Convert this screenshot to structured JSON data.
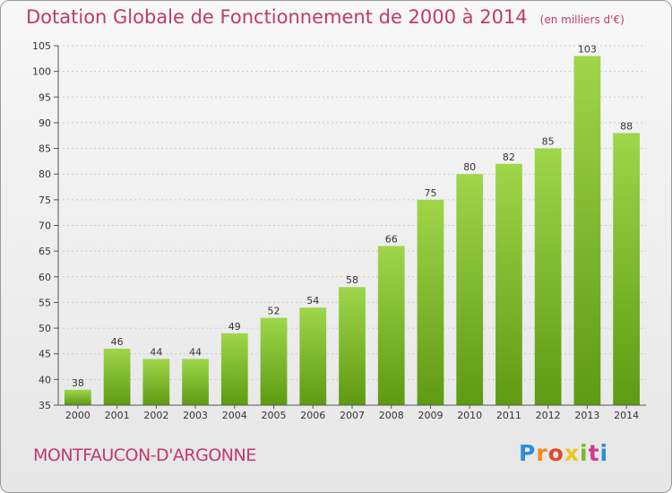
{
  "title": "Dotation Globale de Fonctionnement de 2000 à 2014",
  "subtitle": "(en milliers d'€)",
  "commune": "MONTFAUCON-D'ARGONNE",
  "logo": {
    "letters": [
      "P",
      "r",
      "o",
      "x",
      "i",
      "t",
      "i"
    ],
    "colors": [
      "#2b8fd6",
      "#f08a1c",
      "#e04a2a",
      "#f0c419",
      "#7ab82e",
      "#d03a8a",
      "#2b8fd6"
    ]
  },
  "colors": {
    "title": "#c03a6e",
    "bar_light": "#9fd64a",
    "bar_dark": "#5e9a12",
    "grid": "#c9c9c9"
  },
  "chart_data": {
    "type": "bar",
    "categories": [
      "2000",
      "2001",
      "2002",
      "2003",
      "2004",
      "2005",
      "2006",
      "2007",
      "2008",
      "2009",
      "2010",
      "2011",
      "2012",
      "2013",
      "2014"
    ],
    "values": [
      38,
      46,
      44,
      44,
      49,
      52,
      54,
      58,
      66,
      75,
      80,
      82,
      85,
      103,
      88
    ],
    "ylim": [
      35,
      105
    ],
    "yticks": [
      35,
      40,
      45,
      50,
      55,
      60,
      65,
      70,
      75,
      80,
      85,
      90,
      95,
      100,
      105
    ],
    "grid": true
  }
}
